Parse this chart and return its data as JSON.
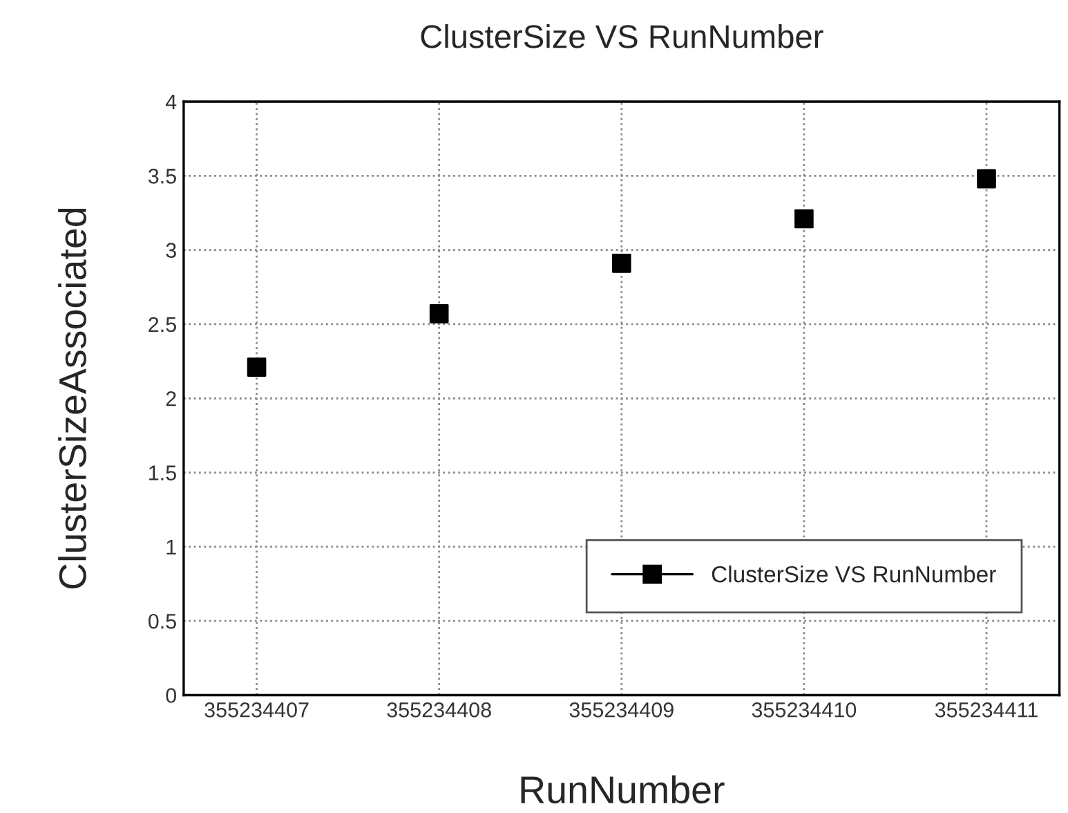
{
  "chart_data": {
    "type": "scatter",
    "title": "ClusterSize VS RunNumber",
    "xlabel": "RunNumber",
    "ylabel": "ClusterSizeAssociated",
    "x": [
      355234407,
      355234408,
      355234409,
      355234410,
      355234411
    ],
    "series": [
      {
        "name": "ClusterSize VS RunNumber",
        "color": "#000000",
        "values": [
          2.21,
          2.57,
          2.91,
          3.21,
          3.48
        ]
      }
    ],
    "xlim": [
      355234406.6,
      355234411.4
    ],
    "xticks": [
      355234407,
      355234408,
      355234409,
      355234410,
      355234411
    ],
    "ylim": [
      0,
      4
    ],
    "yticks": [
      0,
      0.5,
      1,
      1.5,
      2,
      2.5,
      3,
      3.5,
      4
    ],
    "grid": true,
    "legend": "bottom right",
    "marker": "square"
  }
}
